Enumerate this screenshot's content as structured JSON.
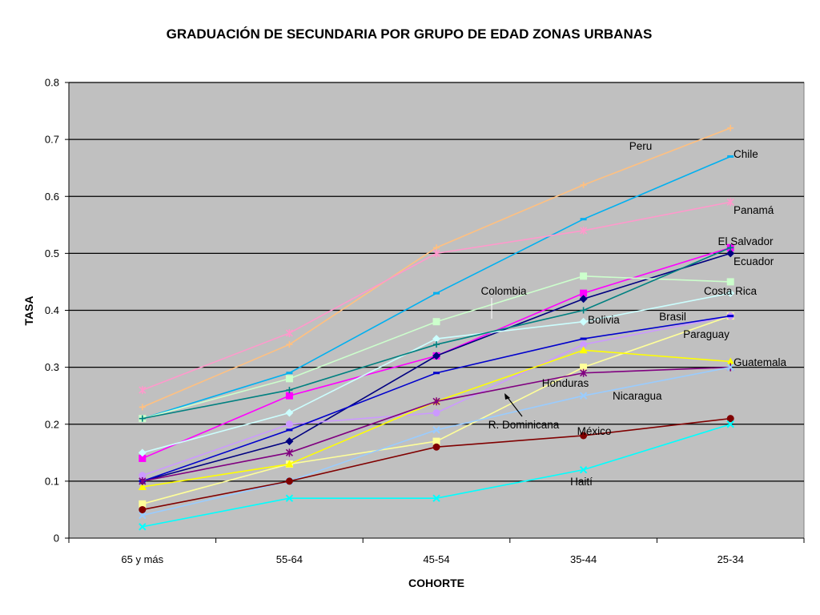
{
  "chart_data": {
    "type": "line",
    "title": "GRADUACIÓN DE SECUNDARIA POR GRUPO DE EDAD ZONAS URBANAS",
    "xlabel": "COHORTE",
    "ylabel": "TASA",
    "categories": [
      "65 y más",
      "55-64",
      "45-54",
      "35-44",
      "25-34"
    ],
    "ylim": [
      0,
      0.8
    ],
    "yticks": [
      "0",
      "0.1",
      "0.2",
      "0.3",
      "0.4",
      "0.5",
      "0.6",
      "0.7",
      "0.8"
    ],
    "grid": "horizontal",
    "plot_background": "#C0C0C0",
    "series": [
      {
        "name": "Peru",
        "color": "#FFC080",
        "marker": "plus",
        "values": [
          0.23,
          0.34,
          0.51,
          0.62,
          0.72
        ]
      },
      {
        "name": "Chile",
        "color": "#00B0F0",
        "marker": "bar",
        "values": [
          0.21,
          0.29,
          0.43,
          0.56,
          0.67
        ]
      },
      {
        "name": "Panamá",
        "color": "#FF99CC",
        "marker": "star",
        "values": [
          0.26,
          0.36,
          0.5,
          0.54,
          0.59
        ]
      },
      {
        "name": "El Salvador",
        "color": "#FF00FF",
        "marker": "square",
        "values": [
          0.14,
          0.25,
          0.32,
          0.43,
          0.51
        ]
      },
      {
        "name": "Ecuador",
        "color": "#000080",
        "marker": "diamond",
        "values": [
          0.1,
          0.17,
          0.32,
          0.42,
          0.5
        ]
      },
      {
        "name": "Costa Rica",
        "color": "#CCFFCC",
        "marker": "square",
        "values": [
          0.21,
          0.28,
          0.38,
          0.46,
          0.45
        ]
      },
      {
        "name": "Colombia",
        "color": "#CCFFFF",
        "marker": "diamond",
        "values": [
          0.15,
          0.22,
          0.35,
          0.38,
          0.43
        ]
      },
      {
        "name": "Bolivia",
        "color": "#008080",
        "marker": "plus",
        "values": [
          0.21,
          0.26,
          0.34,
          0.4,
          0.51
        ]
      },
      {
        "name": "Brasil",
        "color": "#FFFF99",
        "marker": "square",
        "values": [
          0.06,
          0.13,
          0.17,
          0.3,
          0.39
        ]
      },
      {
        "name": "Paraguay",
        "color": "#CC99FF",
        "marker": "circle",
        "values": [
          0.11,
          0.2,
          0.22,
          0.34,
          0.39
        ]
      },
      {
        "name": "",
        "color": "#0000CC",
        "marker": "bar",
        "values": [
          0.1,
          0.19,
          0.29,
          0.35,
          0.39
        ]
      },
      {
        "name": "Guatemala",
        "color": "#FFFF00",
        "marker": "triangle",
        "values": [
          0.09,
          0.13,
          0.24,
          0.33,
          0.31
        ]
      },
      {
        "name": "Honduras",
        "color": "#800080",
        "marker": "star",
        "values": [
          0.1,
          0.15,
          0.24,
          0.29,
          0.3
        ]
      },
      {
        "name": "Nicaragua",
        "color": "#99CCFF",
        "marker": "x",
        "values": [
          0.04,
          0.1,
          0.19,
          0.25,
          0.3
        ]
      },
      {
        "name": "México",
        "color": "#800000",
        "marker": "circle",
        "values": [
          0.05,
          0.1,
          0.16,
          0.18,
          0.21
        ]
      },
      {
        "name": "Haití",
        "color": "#00FFFF",
        "marker": "x",
        "values": [
          0.02,
          0.07,
          0.07,
          0.12,
          0.2
        ]
      }
    ],
    "annotations": [
      "Peru",
      "Chile",
      "Panamá",
      "El Salvador",
      "Ecuador",
      "Costa Rica",
      "Colombia",
      "Bolivia",
      "Brasil",
      "Paraguay",
      "Guatemala",
      "Honduras",
      "Nicaragua",
      "R. Dominicana",
      "México",
      "Haití"
    ]
  }
}
